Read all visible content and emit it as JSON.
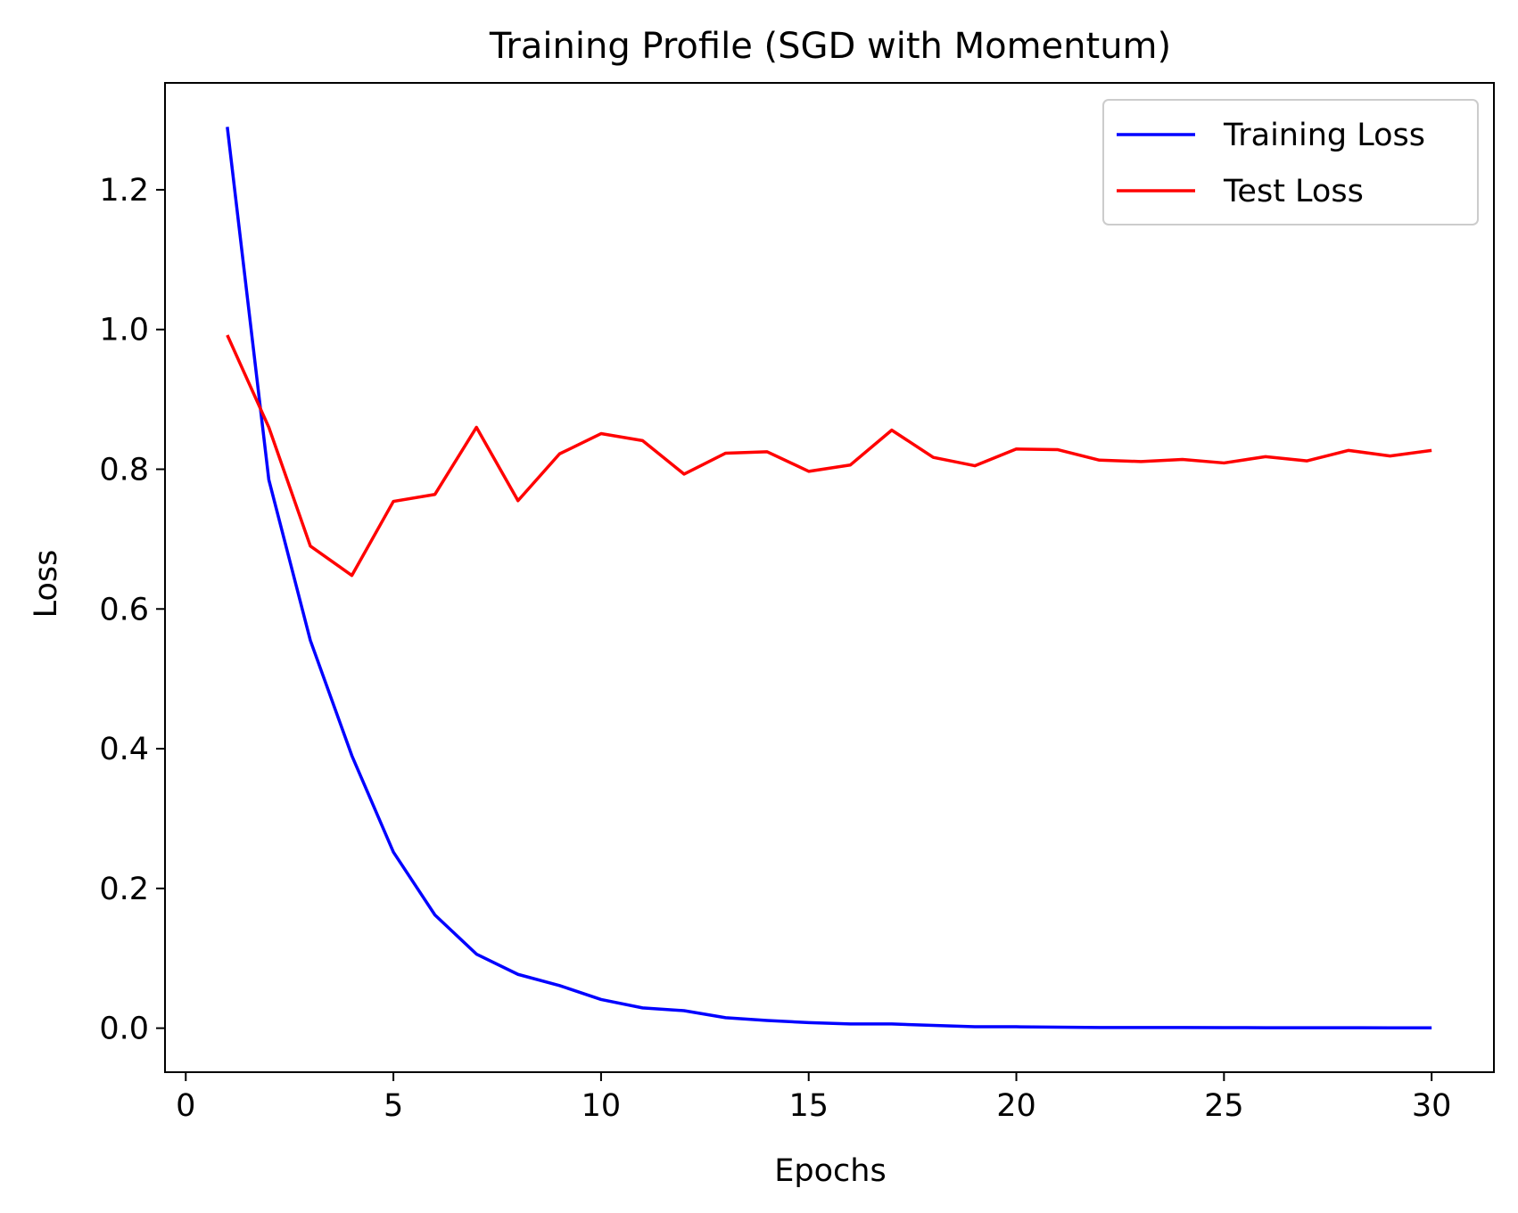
{
  "chart_data": {
    "type": "line",
    "title": "Training Profile (SGD with Momentum)",
    "xlabel": "Epochs",
    "ylabel": "Loss",
    "xlim": [
      -0.5,
      31.5
    ],
    "ylim": [
      -0.063,
      1.353
    ],
    "xticks": [
      0,
      5,
      10,
      15,
      20,
      25,
      30
    ],
    "yticks": [
      0.0,
      0.2,
      0.4,
      0.6,
      0.8,
      1.0,
      1.2
    ],
    "xtick_labels": [
      "0",
      "5",
      "10",
      "15",
      "20",
      "25",
      "30"
    ],
    "ytick_labels": [
      "0.0",
      "0.2",
      "0.4",
      "0.6",
      "0.8",
      "1.0",
      "1.2"
    ],
    "grid": false,
    "legend_position": "top-right",
    "x": [
      1,
      2,
      3,
      4,
      5,
      6,
      7,
      8,
      9,
      10,
      11,
      12,
      13,
      14,
      15,
      16,
      17,
      18,
      19,
      20,
      21,
      22,
      23,
      24,
      25,
      26,
      27,
      28,
      29,
      30
    ],
    "series": [
      {
        "name": "Training Loss",
        "color": "#0000ff",
        "values": [
          1.29,
          0.785,
          0.555,
          0.39,
          0.252,
          0.162,
          0.106,
          0.077,
          0.061,
          0.041,
          0.029,
          0.025,
          0.015,
          0.011,
          0.008,
          0.006,
          0.006,
          0.004,
          0.002,
          0.002,
          0.0015,
          0.001,
          0.001,
          0.001,
          0.0008,
          0.0007,
          0.0006,
          0.0006,
          0.0005,
          0.0005
        ]
      },
      {
        "name": "Test Loss",
        "color": "#ff0000",
        "values": [
          0.992,
          0.86,
          0.69,
          0.648,
          0.754,
          0.764,
          0.86,
          0.755,
          0.822,
          0.851,
          0.841,
          0.793,
          0.823,
          0.825,
          0.797,
          0.806,
          0.856,
          0.817,
          0.805,
          0.829,
          0.828,
          0.813,
          0.811,
          0.814,
          0.809,
          0.818,
          0.812,
          0.827,
          0.819,
          0.827
        ]
      }
    ]
  }
}
